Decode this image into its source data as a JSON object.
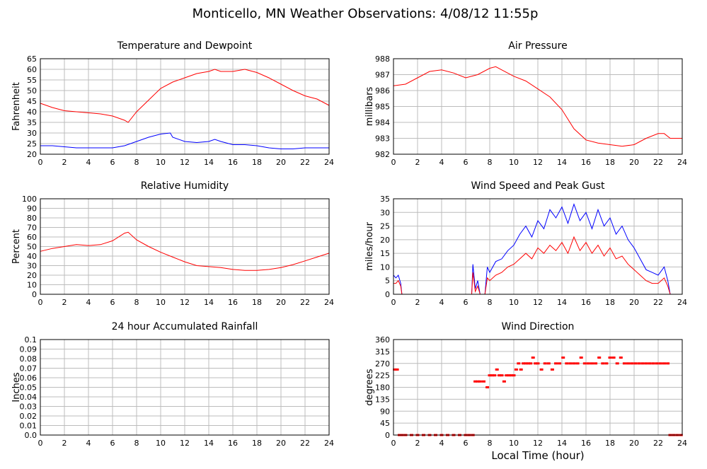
{
  "page": {
    "title": "Monticello, MN Weather Observations: 4/08/12 11:55p",
    "shared_xlabel": "Local Time (hour)"
  },
  "chart_data": [
    {
      "type": "line",
      "title": "Temperature and Dewpoint",
      "ylabel": "Fahrenheit",
      "xlabel": "",
      "xlim": [
        0,
        24
      ],
      "ylim": [
        20,
        65
      ],
      "xticks": [
        0,
        2,
        4,
        6,
        8,
        10,
        12,
        14,
        16,
        18,
        20,
        22,
        24
      ],
      "yticks": [
        20,
        25,
        30,
        35,
        40,
        45,
        50,
        55,
        60,
        65
      ],
      "grid": true,
      "series": [
        {
          "color": "#ff0000",
          "x": [
            0,
            1,
            2,
            3,
            4,
            5,
            6,
            7,
            7.3,
            8,
            9,
            10,
            11,
            12,
            13,
            14,
            14.5,
            15,
            16,
            17,
            18,
            19,
            20,
            21,
            22,
            23,
            24
          ],
          "y": [
            44,
            42,
            40.5,
            40,
            39.5,
            39,
            38,
            36,
            35,
            40,
            45.5,
            51,
            54,
            56,
            58,
            59,
            60,
            59,
            59,
            60,
            58.5,
            56,
            53,
            50,
            47.5,
            46,
            43
          ]
        },
        {
          "color": "#0000ff",
          "x": [
            0,
            1,
            2,
            3,
            4,
            5,
            6,
            7,
            8,
            9,
            10,
            10.8,
            11,
            12,
            13,
            14,
            14.5,
            15,
            16,
            17,
            18,
            19,
            20,
            21,
            22,
            23,
            24
          ],
          "y": [
            24,
            24,
            23.5,
            23,
            23,
            23,
            23,
            24,
            26,
            28,
            29.5,
            30,
            28,
            26,
            25.5,
            26,
            27,
            26,
            24.5,
            24.5,
            24,
            23,
            22.5,
            22.5,
            23,
            23,
            23
          ]
        }
      ]
    },
    {
      "type": "line",
      "title": "Air Pressure",
      "ylabel": "millibars",
      "xlabel": "",
      "xlim": [
        0,
        24
      ],
      "ylim": [
        982,
        988
      ],
      "xticks": [
        0,
        2,
        4,
        6,
        8,
        10,
        12,
        14,
        16,
        18,
        20,
        22,
        24
      ],
      "yticks": [
        982,
        983,
        984,
        985,
        986,
        987,
        988
      ],
      "grid": true,
      "series": [
        {
          "color": "#ff0000",
          "x": [
            0,
            1,
            2,
            3,
            4,
            5,
            6,
            7,
            8,
            8.5,
            9,
            10,
            11,
            12,
            13,
            14,
            15,
            16,
            17,
            18,
            19,
            20,
            21,
            22,
            22.5,
            23,
            24
          ],
          "y": [
            986.3,
            986.4,
            986.8,
            987.2,
            987.3,
            987.1,
            986.8,
            987.0,
            987.4,
            987.5,
            987.3,
            986.9,
            986.6,
            986.1,
            985.6,
            984.8,
            983.6,
            982.9,
            982.7,
            982.6,
            982.5,
            982.6,
            983.0,
            983.3,
            983.3,
            983.0,
            983.0
          ]
        }
      ]
    },
    {
      "type": "line",
      "title": "Relative Humidity",
      "ylabel": "Percent",
      "xlabel": "",
      "xlim": [
        0,
        24
      ],
      "ylim": [
        0,
        100
      ],
      "xticks": [
        0,
        2,
        4,
        6,
        8,
        10,
        12,
        14,
        16,
        18,
        20,
        22,
        24
      ],
      "yticks": [
        0,
        10,
        20,
        30,
        40,
        50,
        60,
        70,
        80,
        90,
        100
      ],
      "grid": true,
      "series": [
        {
          "color": "#ff0000",
          "x": [
            0,
            1,
            2,
            3,
            4,
            5,
            6,
            7,
            7.3,
            8,
            9,
            10,
            11,
            12,
            13,
            14,
            15,
            16,
            17,
            18,
            19,
            20,
            21,
            22,
            23,
            24
          ],
          "y": [
            45,
            48,
            50,
            52,
            51,
            52,
            56,
            64,
            65,
            57,
            50,
            44,
            39,
            34,
            30,
            29,
            28,
            26,
            25,
            25,
            26,
            28,
            31,
            35,
            39,
            43
          ]
        }
      ]
    },
    {
      "type": "line",
      "title": "Wind Speed and Peak Gust",
      "ylabel": "miles/hour",
      "xlabel": "",
      "xlim": [
        0,
        24
      ],
      "ylim": [
        0,
        35
      ],
      "xticks": [
        0,
        2,
        4,
        6,
        8,
        10,
        12,
        14,
        16,
        18,
        20,
        22,
        24
      ],
      "yticks": [
        0,
        5,
        10,
        15,
        20,
        25,
        30,
        35
      ],
      "grid": true,
      "series": [
        {
          "color": "#0000ff",
          "x": [
            0,
            0.2,
            0.4,
            0.6,
            0.7,
            6.5,
            6.6,
            6.8,
            7.0,
            7.2,
            7.4,
            7.6,
            7.8,
            8.0,
            8.5,
            9,
            9.5,
            10,
            10.5,
            11,
            11.5,
            12,
            12.5,
            13,
            13.5,
            14,
            14.5,
            15,
            15.5,
            16,
            16.5,
            17,
            17.5,
            18,
            18.5,
            19,
            19.5,
            20,
            20.5,
            21,
            21.5,
            22,
            22.5,
            22.8,
            23,
            24
          ],
          "y": [
            7,
            6,
            7,
            4,
            0,
            0,
            11,
            2,
            5,
            0,
            0,
            0,
            10,
            8,
            12,
            13,
            16,
            18,
            22,
            25,
            21,
            27,
            24,
            31,
            28,
            32,
            26,
            33,
            27,
            30,
            24,
            31,
            25,
            28,
            22,
            25,
            20,
            17,
            13,
            9,
            8,
            7,
            10,
            5,
            0,
            0
          ]
        },
        {
          "color": "#ff0000",
          "x": [
            0,
            0.2,
            0.4,
            0.6,
            0.7,
            6.5,
            6.6,
            6.8,
            7.0,
            7.2,
            7.4,
            7.6,
            7.8,
            8.0,
            8.5,
            9,
            9.5,
            10,
            10.5,
            11,
            11.5,
            12,
            12.5,
            13,
            13.5,
            14,
            14.5,
            15,
            15.5,
            16,
            16.5,
            17,
            17.5,
            18,
            18.5,
            19,
            19.5,
            20,
            20.5,
            21,
            21.5,
            22,
            22.5,
            22.8,
            23,
            24
          ],
          "y": [
            4,
            4,
            5,
            3,
            0,
            0,
            8,
            1,
            3,
            0,
            0,
            0,
            6,
            5,
            7,
            8,
            10,
            11,
            13,
            15,
            13,
            17,
            15,
            18,
            16,
            19,
            15,
            21,
            16,
            19,
            15,
            18,
            14,
            17,
            13,
            14,
            11,
            9,
            7,
            5,
            4,
            4,
            6,
            3,
            0,
            0
          ]
        }
      ]
    },
    {
      "type": "line",
      "title": "24 hour Accumulated Rainfall",
      "ylabel": "Inches",
      "xlabel": "",
      "xlim": [
        0,
        24
      ],
      "ylim": [
        0,
        0.1
      ],
      "xticks": [
        0,
        2,
        4,
        6,
        8,
        10,
        12,
        14,
        16,
        18,
        20,
        22,
        24
      ],
      "yticks": [
        "0.0",
        "0.01",
        "0.02",
        "0.03",
        "0.04",
        "0.05",
        "0.06",
        "0.07",
        "0.08",
        "0.09",
        "0.1"
      ],
      "grid": true,
      "series": [
        {
          "color": "#ff0000",
          "x": [
            0,
            24
          ],
          "y": [
            0,
            0
          ]
        }
      ]
    },
    {
      "type": "scatter",
      "title": "Wind Direction",
      "ylabel": "degrees",
      "xlabel": "Local Time (hour)",
      "xlim": [
        0,
        24
      ],
      "ylim": [
        0,
        360
      ],
      "xticks": [
        0,
        2,
        4,
        6,
        8,
        10,
        12,
        14,
        16,
        18,
        20,
        22,
        24
      ],
      "yticks": [
        0,
        45,
        90,
        135,
        180,
        225,
        270,
        315,
        360
      ],
      "grid": true,
      "series": [
        {
          "color": "#ff0000",
          "x": [
            0.1,
            0.3,
            0.5,
            0.7,
            1,
            1.5,
            2,
            2.5,
            3,
            3.5,
            4,
            4.5,
            5,
            5.5,
            6,
            6.3,
            6.6,
            6.8,
            7,
            7.2,
            7.5,
            7.8,
            8,
            8.2,
            8.4,
            8.6,
            8.8,
            9,
            9.2,
            9.4,
            9.6,
            9.8,
            10,
            10.2,
            10.4,
            10.6,
            10.8,
            11,
            11.2,
            11.4,
            11.6,
            11.8,
            12,
            12.3,
            12.6,
            12.9,
            13.2,
            13.5,
            13.8,
            14.1,
            14.4,
            14.7,
            15,
            15.3,
            15.6,
            15.9,
            16.2,
            16.5,
            16.8,
            17.1,
            17.4,
            17.7,
            18,
            18.3,
            18.6,
            18.9,
            19.2,
            19.5,
            19.8,
            20.1,
            20.4,
            20.7,
            21,
            21.3,
            21.6,
            21.9,
            22.2,
            22.5,
            22.8,
            23,
            23.3,
            23.6,
            23.9
          ],
          "y": [
            247,
            247,
            0,
            0,
            0,
            0,
            0,
            0,
            0,
            0,
            0,
            0,
            0,
            0,
            0,
            0,
            0,
            202,
            202,
            202,
            202,
            180,
            225,
            225,
            225,
            247,
            225,
            225,
            202,
            225,
            225,
            225,
            225,
            247,
            270,
            247,
            270,
            270,
            270,
            270,
            292,
            270,
            270,
            247,
            270,
            270,
            247,
            270,
            270,
            292,
            270,
            270,
            270,
            270,
            292,
            270,
            270,
            270,
            270,
            292,
            270,
            270,
            292,
            292,
            270,
            292,
            270,
            270,
            270,
            270,
            270,
            270,
            270,
            270,
            270,
            270,
            270,
            270,
            270,
            0,
            0,
            0,
            0
          ]
        }
      ]
    }
  ]
}
